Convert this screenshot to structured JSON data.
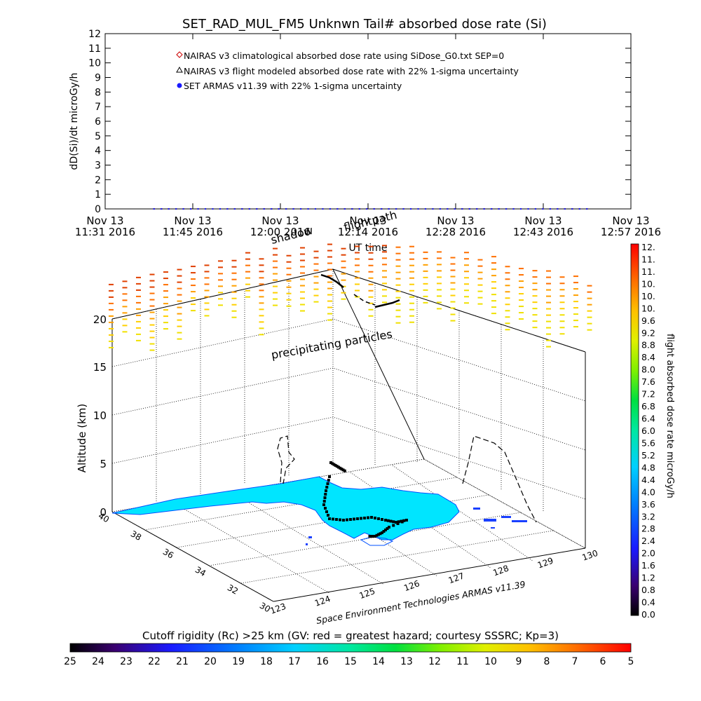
{
  "title": "SET_RAD_MUL_FM5 Unknwn Tail#  absorbed dose rate (Si)",
  "top_chart": {
    "ylabel": "dD(Si)/dt microGy/h",
    "xlabel": "UT time",
    "legend": [
      {
        "label": "NAIRAS v3 climatological absorbed dose rate using SiDose_G0.txt SEP=0",
        "marker": "diamond",
        "color": "#cc0000"
      },
      {
        "label": "NAIRAS v3 flight modeled absorbed dose rate with 22% 1-sigma uncertainty",
        "marker": "triangle",
        "color": "#000000"
      },
      {
        "label": "SET ARMAS v11.39 with 22% 1-sigma uncertainty",
        "marker": "dot",
        "color": "#1a1aff"
      }
    ]
  },
  "overlay_labels": {
    "shadow": "shadow",
    "flightpath": "flightpath",
    "precipitating": "precipitating particles",
    "footer": "Space Environment Technologies ARMAS v11.39"
  },
  "three_d": {
    "zlabel": "Altitude (km)",
    "z_ticks": [
      "0",
      "5",
      "10",
      "15",
      "20"
    ],
    "lat_ticks": [
      "40",
      "38",
      "36",
      "34",
      "32",
      "30"
    ],
    "lon_ticks": [
      "123",
      "124",
      "125",
      "126",
      "127",
      "128",
      "129",
      "130"
    ],
    "lon_tick_display": [
      "123",
      "124",
      "125",
      "126",
      "127",
      "128",
      "129",
      "130"
    ],
    "lat_tick_display": [
      "40",
      "38",
      "36",
      "34",
      "32",
      "30"
    ]
  },
  "right_colorbar": {
    "label": "flight absorbed dose rate microGy/h",
    "ticks": [
      "12.",
      "11.",
      "11.",
      "10.",
      "10.",
      "10.",
      "9.6",
      "9.2",
      "8.8",
      "8.4",
      "8.0",
      "7.6",
      "7.2",
      "6.8",
      "6.4",
      "6.0",
      "5.6",
      "5.2",
      "4.8",
      "4.4",
      "4.0",
      "3.6",
      "3.2",
      "2.8",
      "2.4",
      "2.0",
      "1.6",
      "1.2",
      "0.8",
      "0.4",
      "0.0"
    ]
  },
  "bottom_colorbar": {
    "title": "Cutoff rigidity (Rc) >25 km (GV: red = greatest hazard; courtesy SSSRC; Kp=3)",
    "ticks": [
      "25",
      "24",
      "23",
      "22",
      "21",
      "20",
      "19",
      "18",
      "17",
      "16",
      "15",
      "14",
      "13",
      "12",
      "11",
      "10",
      "9",
      "8",
      "7",
      "6",
      "5"
    ]
  },
  "chart_data": {
    "type": "scatter",
    "title": "SET_RAD_MUL_FM5 Unknwn Tail#  absorbed dose rate (Si)",
    "xlabel": "UT time",
    "ylabel": "dD(Si)/dt microGy/h",
    "ylim": [
      0,
      12
    ],
    "y_ticks": [
      0,
      1,
      2,
      3,
      4,
      5,
      6,
      7,
      8,
      9,
      10,
      11,
      12
    ],
    "x_ticks": [
      {
        "line1": "Nov 13",
        "line2": "11:31 2016"
      },
      {
        "line1": "Nov 13",
        "line2": "11:45 2016"
      },
      {
        "line1": "Nov 13",
        "line2": "12:00 2016"
      },
      {
        "line1": "Nov 13",
        "line2": "12:14 2016"
      },
      {
        "line1": "Nov 13",
        "line2": "12:28 2016"
      },
      {
        "line1": "Nov 13",
        "line2": "12:43 2016"
      },
      {
        "line1": "Nov 13",
        "line2": "12:57 2016"
      }
    ],
    "series": [
      {
        "name": "NAIRAS v3 climatological absorbed dose rate using SiDose_G0.txt SEP=0",
        "x_range": [
          "11:39",
          "12:51"
        ],
        "values_approx": 0.0
      },
      {
        "name": "NAIRAS v3 flight modeled absorbed dose rate with 22% 1-sigma uncertainty",
        "x_range": [
          "11:39",
          "12:51"
        ],
        "values_approx": 0.0
      },
      {
        "name": "SET ARMAS v11.39 with 22% 1-sigma uncertainty",
        "x_range": [
          "11:39",
          "12:51"
        ],
        "values_approx": 0.0
      }
    ],
    "grid": true,
    "legend_placement": "top-left inside"
  }
}
